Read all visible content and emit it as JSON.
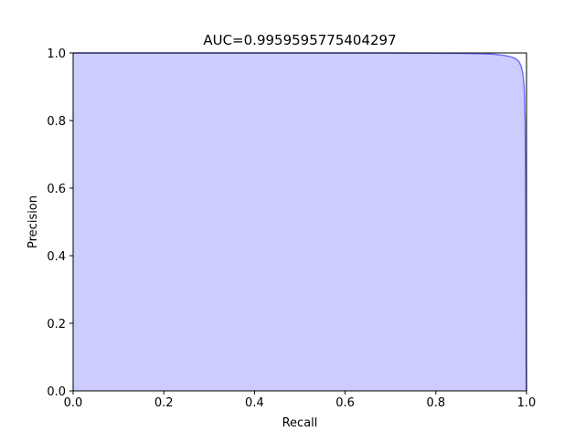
{
  "chart_data": {
    "type": "area",
    "title": "AUC=0.9959595775404297",
    "xlabel": "Recall",
    "ylabel": "Precision",
    "xlim": [
      0.0,
      1.0
    ],
    "ylim": [
      0.0,
      1.0
    ],
    "x_ticks": [
      "0.0",
      "0.2",
      "0.4",
      "0.6",
      "0.8",
      "1.0"
    ],
    "y_ticks": [
      "0.0",
      "0.2",
      "0.4",
      "0.6",
      "0.8",
      "1.0"
    ],
    "grid": false,
    "legend": "none",
    "series": [
      {
        "line_color": "#0000ff",
        "line_alpha": 0.5,
        "fill_color": "#0000ff",
        "fill_alpha": 0.2,
        "points": [
          {
            "x": 0.0,
            "y": 1.0
          },
          {
            "x": 0.2,
            "y": 1.0
          },
          {
            "x": 0.4,
            "y": 1.0
          },
          {
            "x": 0.6,
            "y": 1.0
          },
          {
            "x": 0.7,
            "y": 1.0
          },
          {
            "x": 0.8,
            "y": 0.9995
          },
          {
            "x": 0.85,
            "y": 0.999
          },
          {
            "x": 0.9,
            "y": 0.998
          },
          {
            "x": 0.93,
            "y": 0.996
          },
          {
            "x": 0.95,
            "y": 0.993
          },
          {
            "x": 0.965,
            "y": 0.989
          },
          {
            "x": 0.975,
            "y": 0.984
          },
          {
            "x": 0.983,
            "y": 0.975
          },
          {
            "x": 0.988,
            "y": 0.962
          },
          {
            "x": 0.992,
            "y": 0.94
          },
          {
            "x": 0.995,
            "y": 0.9
          },
          {
            "x": 0.997,
            "y": 0.8
          },
          {
            "x": 0.998,
            "y": 0.6
          },
          {
            "x": 0.999,
            "y": 0.35
          },
          {
            "x": 0.9995,
            "y": 0.1
          },
          {
            "x": 1.0,
            "y": 0.0
          }
        ]
      }
    ]
  }
}
